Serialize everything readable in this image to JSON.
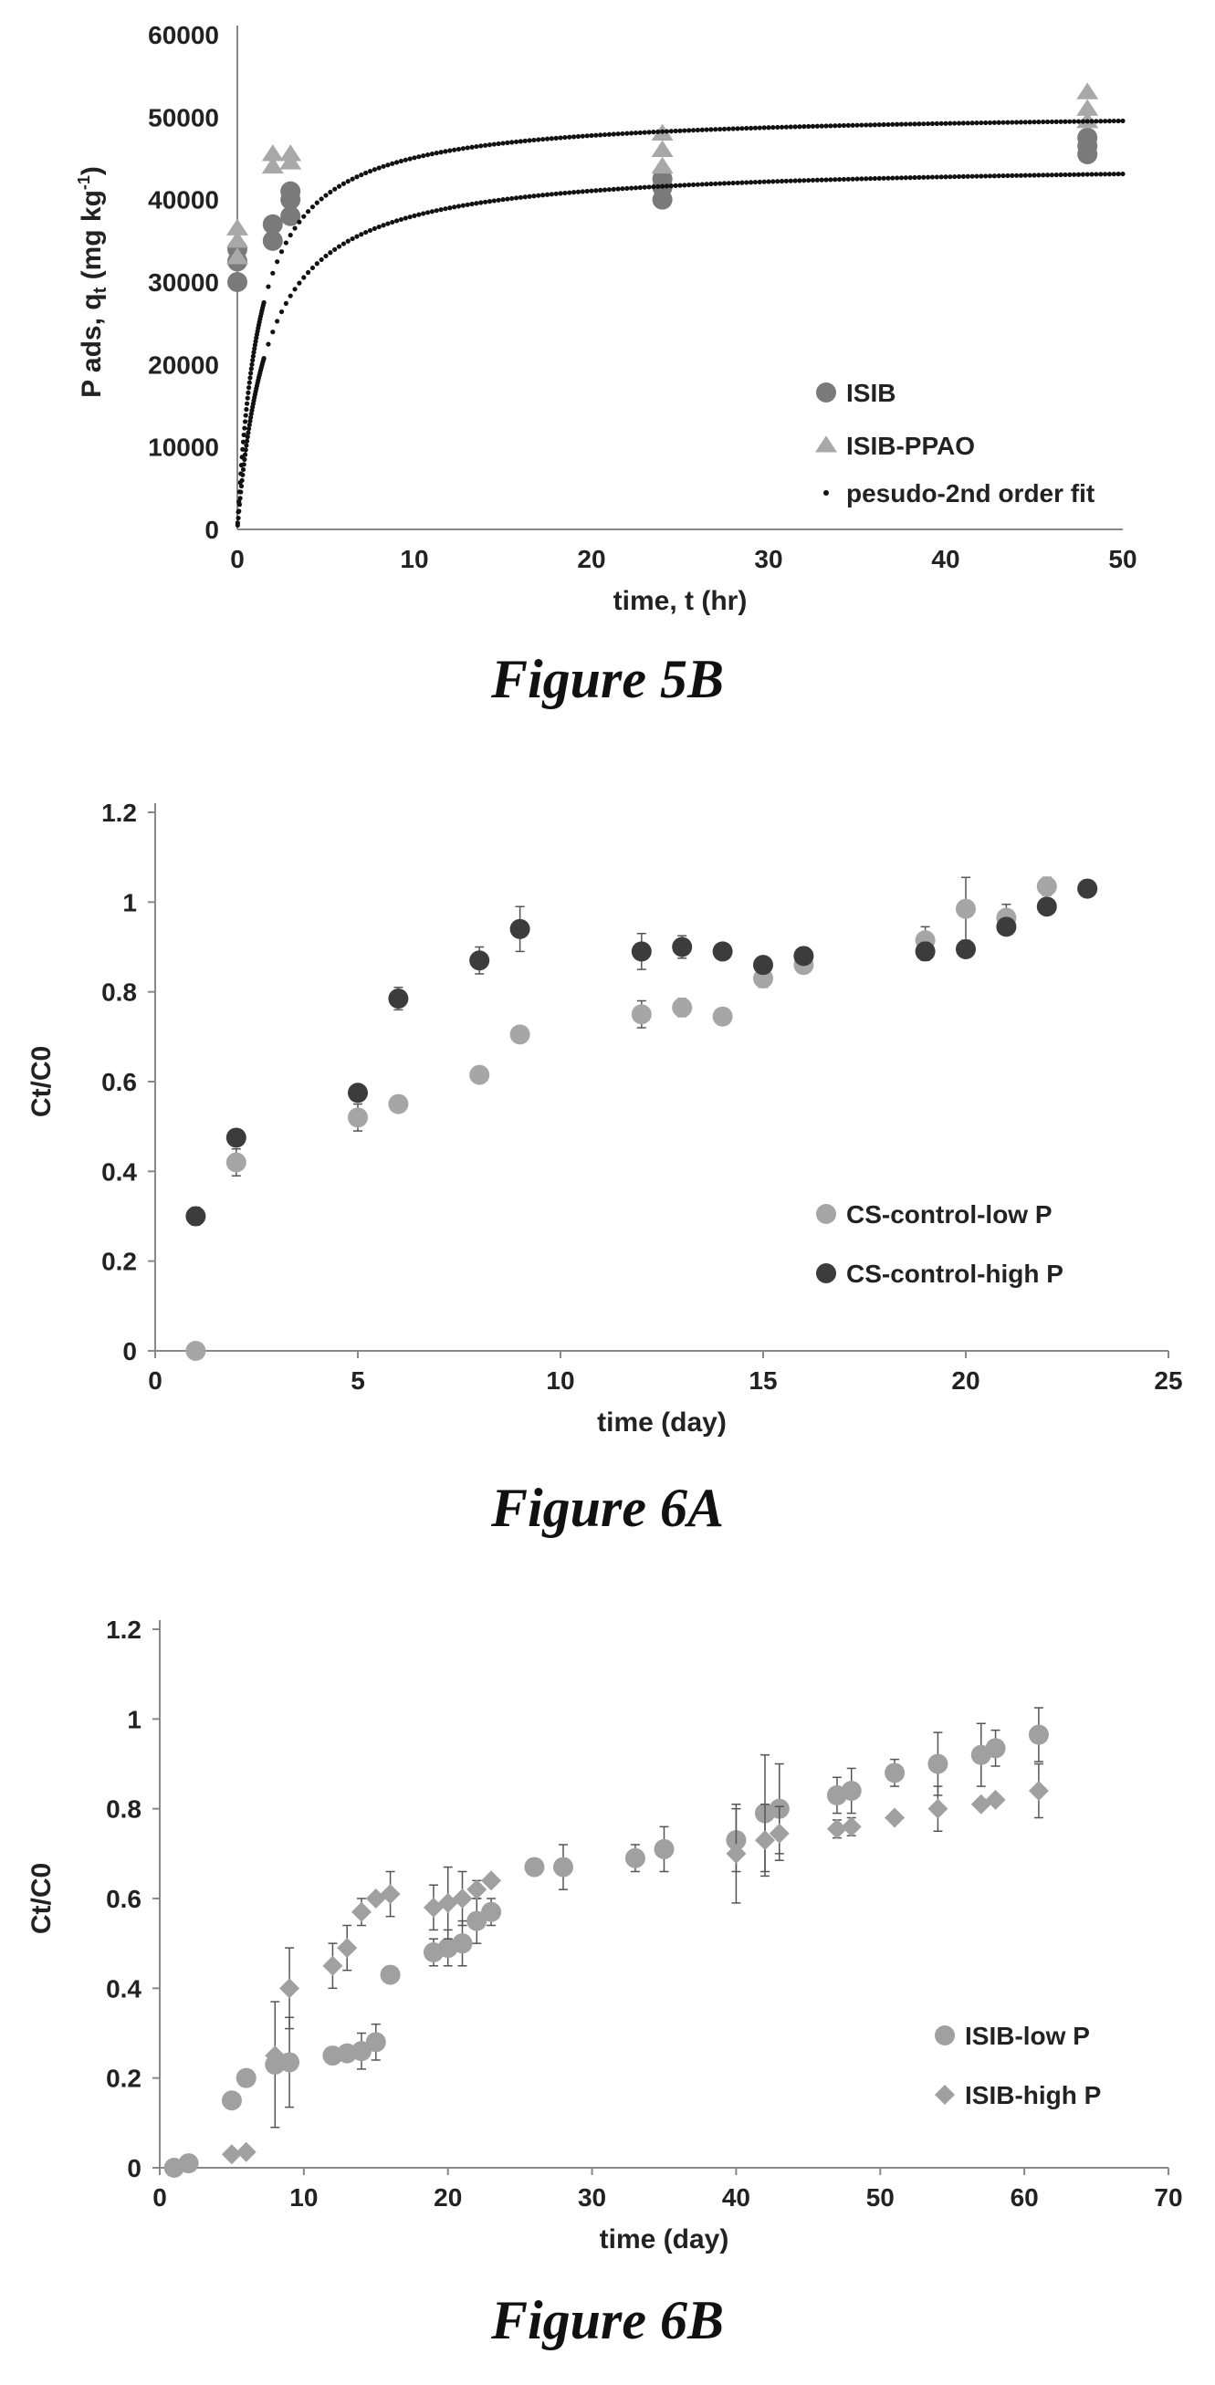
{
  "captions": [
    "Figure 5B",
    "Figure 6A",
    "Figure 6B"
  ],
  "chart_data": [
    {
      "type": "scatter",
      "title": "",
      "xlabel": "time, t (hr)",
      "ylabel": "P ads, q",
      "ylabel_sub": "t",
      "ylabel_unit": " (mg kg",
      "ylabel_sup": "-1",
      "ylabel_close": ")",
      "xlim": [
        0,
        50
      ],
      "ylim": [
        0,
        60000
      ],
      "xticks": [
        0,
        10,
        20,
        30,
        40,
        50
      ],
      "yticks": [
        0,
        10000,
        20000,
        30000,
        40000,
        50000,
        60000
      ],
      "grid": false,
      "legend_position": "bottom-right",
      "series": [
        {
          "name": "ISIB",
          "marker": "circle",
          "color": "#7a7a7a",
          "points": [
            [
              0,
              30000
            ],
            [
              0,
              32500
            ],
            [
              0,
              34000
            ],
            [
              2,
              35000
            ],
            [
              2,
              37000
            ],
            [
              3,
              38000
            ],
            [
              3,
              40000
            ],
            [
              3,
              41000
            ],
            [
              24,
              40000
            ],
            [
              24,
              41500
            ],
            [
              24,
              42500
            ],
            [
              48,
              45500
            ],
            [
              48,
              46500
            ],
            [
              48,
              47500
            ]
          ]
        },
        {
          "name": "ISIB-PPAO",
          "marker": "triangle",
          "color": "#a8a8a8",
          "points": [
            [
              0,
              33000
            ],
            [
              0,
              35000
            ],
            [
              0,
              36500
            ],
            [
              2,
              44000
            ],
            [
              2,
              45500
            ],
            [
              3,
              44500
            ],
            [
              3,
              45500
            ],
            [
              24,
              44000
            ],
            [
              24,
              46000
            ],
            [
              24,
              48000
            ],
            [
              48,
              49500
            ],
            [
              48,
              51000
            ],
            [
              48,
              53000
            ]
          ]
        },
        {
          "name": "pesudo-2nd order fit",
          "marker": "dot",
          "color": "#111111",
          "curves": [
            {
              "qe": 44600,
              "k": 1.3e-05
            },
            {
              "qe": 50800,
              "k": 1.55e-05
            }
          ]
        }
      ]
    },
    {
      "type": "scatter",
      "title": "",
      "xlabel": "time (day)",
      "ylabel": "Ct/C0",
      "xlim": [
        0,
        25
      ],
      "ylim": [
        0,
        1.2
      ],
      "xticks": [
        0,
        5,
        10,
        15,
        20,
        25
      ],
      "yticks": [
        "0",
        "0.2",
        "0.4",
        "0.6",
        "0.8",
        "1",
        "1.2"
      ],
      "grid": false,
      "legend_position": "bottom-right",
      "series": [
        {
          "name": "CS-control-low P",
          "marker": "circle",
          "color": "#a6a6a6",
          "points": [
            [
              1,
              0.0
            ],
            [
              2,
              0.42
            ],
            [
              5,
              0.52
            ],
            [
              6,
              0.55
            ],
            [
              8,
              0.615
            ],
            [
              9,
              0.705
            ],
            [
              12,
              0.75
            ],
            [
              13,
              0.765
            ],
            [
              14,
              0.745
            ],
            [
              15,
              0.83
            ],
            [
              16,
              0.86
            ],
            [
              19,
              0.915
            ],
            [
              20,
              0.985
            ],
            [
              21,
              0.965
            ],
            [
              22,
              1.035
            ],
            [
              23,
              1.03
            ]
          ],
          "err": [
            0.0,
            0.03,
            0.03,
            0.0,
            0.0,
            0.015,
            0.03,
            0.02,
            0.0,
            0.02,
            0.0,
            0.03,
            0.07,
            0.03,
            0.02,
            0.0
          ]
        },
        {
          "name": "CS-control-high P",
          "marker": "circle",
          "color": "#3c3c3c",
          "points": [
            [
              1,
              0.3
            ],
            [
              2,
              0.475
            ],
            [
              5,
              0.575
            ],
            [
              6,
              0.785
            ],
            [
              8,
              0.87
            ],
            [
              9,
              0.94
            ],
            [
              12,
              0.89
            ],
            [
              13,
              0.9
            ],
            [
              14,
              0.89
            ],
            [
              15,
              0.86
            ],
            [
              16,
              0.88
            ],
            [
              19,
              0.89
            ],
            [
              20,
              0.895
            ],
            [
              21,
              0.945
            ],
            [
              22,
              0.99
            ],
            [
              23,
              1.03
            ]
          ],
          "err": [
            0.02,
            0.0,
            0.0,
            0.025,
            0.03,
            0.05,
            0.04,
            0.025,
            0.0,
            0.0,
            0.0,
            0.02,
            0.0,
            0.0,
            0.0,
            0.0
          ]
        }
      ]
    },
    {
      "type": "scatter",
      "title": "",
      "xlabel": "time (day)",
      "ylabel": "Ct/C0",
      "xlim": [
        0,
        70
      ],
      "ylim": [
        0,
        1.2
      ],
      "xticks": [
        0,
        10,
        20,
        30,
        40,
        50,
        60,
        70
      ],
      "yticks": [
        "0",
        "0.2",
        "0.4",
        "0.6",
        "0.8",
        "1",
        "1.2"
      ],
      "grid": false,
      "legend_position": "bottom-right",
      "series": [
        {
          "name": "ISIB-low P",
          "marker": "circle",
          "color": "#a0a0a0",
          "points": [
            [
              1,
              0.0
            ],
            [
              2,
              0.01
            ],
            [
              5,
              0.15
            ],
            [
              6,
              0.2
            ],
            [
              8,
              0.23
            ],
            [
              9,
              0.235
            ],
            [
              12,
              0.25
            ],
            [
              13,
              0.255
            ],
            [
              14,
              0.26
            ],
            [
              15,
              0.28
            ],
            [
              16,
              0.43
            ],
            [
              19,
              0.48
            ],
            [
              20,
              0.49
            ],
            [
              21,
              0.5
            ],
            [
              22,
              0.55
            ],
            [
              23,
              0.57
            ],
            [
              26,
              0.67
            ],
            [
              28,
              0.67
            ],
            [
              33,
              0.69
            ],
            [
              35,
              0.71
            ],
            [
              40,
              0.73
            ],
            [
              42,
              0.79
            ],
            [
              43,
              0.8
            ],
            [
              47,
              0.83
            ],
            [
              48,
              0.84
            ],
            [
              51,
              0.88
            ],
            [
              54,
              0.9
            ],
            [
              57,
              0.92
            ],
            [
              58,
              0.935
            ],
            [
              61,
              0.965
            ]
          ],
          "err": [
            0,
            0,
            0,
            0,
            0.14,
            0.1,
            0,
            0,
            0.04,
            0.04,
            0,
            0.03,
            0.04,
            0.05,
            0.05,
            0.03,
            0,
            0.05,
            0.03,
            0.05,
            0.07,
            0.13,
            0.1,
            0.04,
            0.05,
            0.03,
            0.07,
            0.07,
            0.04,
            0.06
          ]
        },
        {
          "name": "ISIB-high P",
          "marker": "diamond",
          "color": "#a0a0a0",
          "points": [
            [
              5,
              0.03
            ],
            [
              6,
              0.035
            ],
            [
              8,
              0.25
            ],
            [
              9,
              0.4
            ],
            [
              12,
              0.45
            ],
            [
              13,
              0.49
            ],
            [
              14,
              0.57
            ],
            [
              15,
              0.6
            ],
            [
              16,
              0.61
            ],
            [
              19,
              0.58
            ],
            [
              20,
              0.59
            ],
            [
              21,
              0.6
            ],
            [
              22,
              0.62
            ],
            [
              23,
              0.64
            ],
            [
              40,
              0.7
            ],
            [
              42,
              0.73
            ],
            [
              43,
              0.745
            ],
            [
              47,
              0.755
            ],
            [
              48,
              0.76
            ],
            [
              51,
              0.78
            ],
            [
              54,
              0.8
            ],
            [
              57,
              0.81
            ],
            [
              58,
              0.82
            ],
            [
              61,
              0.84
            ]
          ],
          "err": [
            0,
            0,
            0,
            0.09,
            0.05,
            0.05,
            0.03,
            0,
            0.05,
            0.05,
            0.08,
            0.06,
            0.02,
            0,
            0.11,
            0.08,
            0.06,
            0.02,
            0.02,
            0,
            0.05,
            0,
            0,
            0.06
          ]
        }
      ]
    }
  ]
}
